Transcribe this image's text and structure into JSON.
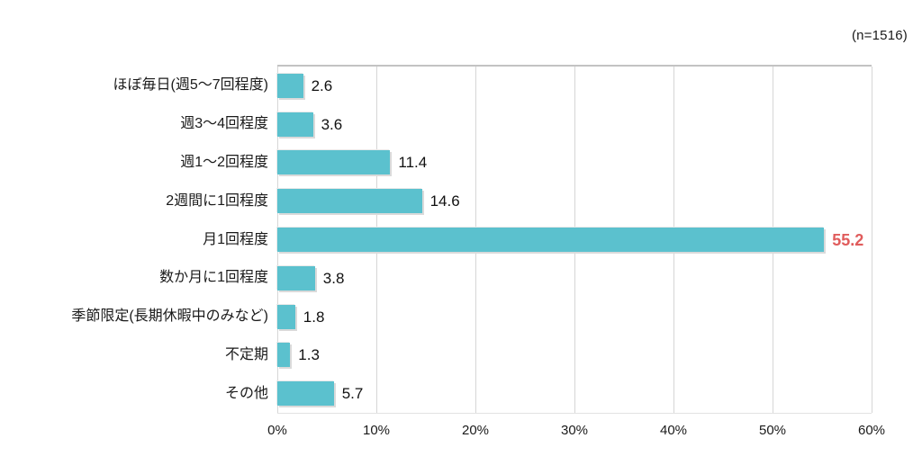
{
  "annotation": {
    "n_label": "(n=1516)"
  },
  "chart_data": {
    "type": "bar",
    "orientation": "horizontal",
    "title": "",
    "xlabel": "",
    "ylabel": "",
    "categories": [
      "ほぼ毎日(週5〜7回程度)",
      "週3〜4回程度",
      "週1〜2回程度",
      "2週間に1回程度",
      "月1回程度",
      "数か月に1回程度",
      "季節限定(長期休暇中のみなど)",
      "不定期",
      "その他"
    ],
    "values": [
      2.6,
      3.6,
      11.4,
      14.6,
      55.2,
      3.8,
      1.8,
      1.3,
      5.7
    ],
    "value_labels": [
      "2.6",
      "3.6",
      "11.4",
      "14.6",
      "55.2",
      "3.8",
      "1.8",
      "1.3",
      "5.7"
    ],
    "highlight_index": 4,
    "xlim": [
      0,
      60
    ],
    "x_tick_values": [
      0,
      10,
      20,
      30,
      40,
      50,
      60
    ],
    "x_tick_labels": [
      "0%",
      "10%",
      "20%",
      "30%",
      "40%",
      "50%",
      "60%"
    ],
    "grid": "vertical",
    "legend": "none",
    "sample_note": "(n=1516)",
    "colors": {
      "bar_fill": "#5bc1ce",
      "bar_shadow": "#dadada",
      "highlight_value_text": "#e05c5c",
      "normal_value_text": "#111111",
      "gridline": "#d6d6d6",
      "plot_top_border": "#c3c3c3",
      "background": "#ffffff"
    }
  }
}
